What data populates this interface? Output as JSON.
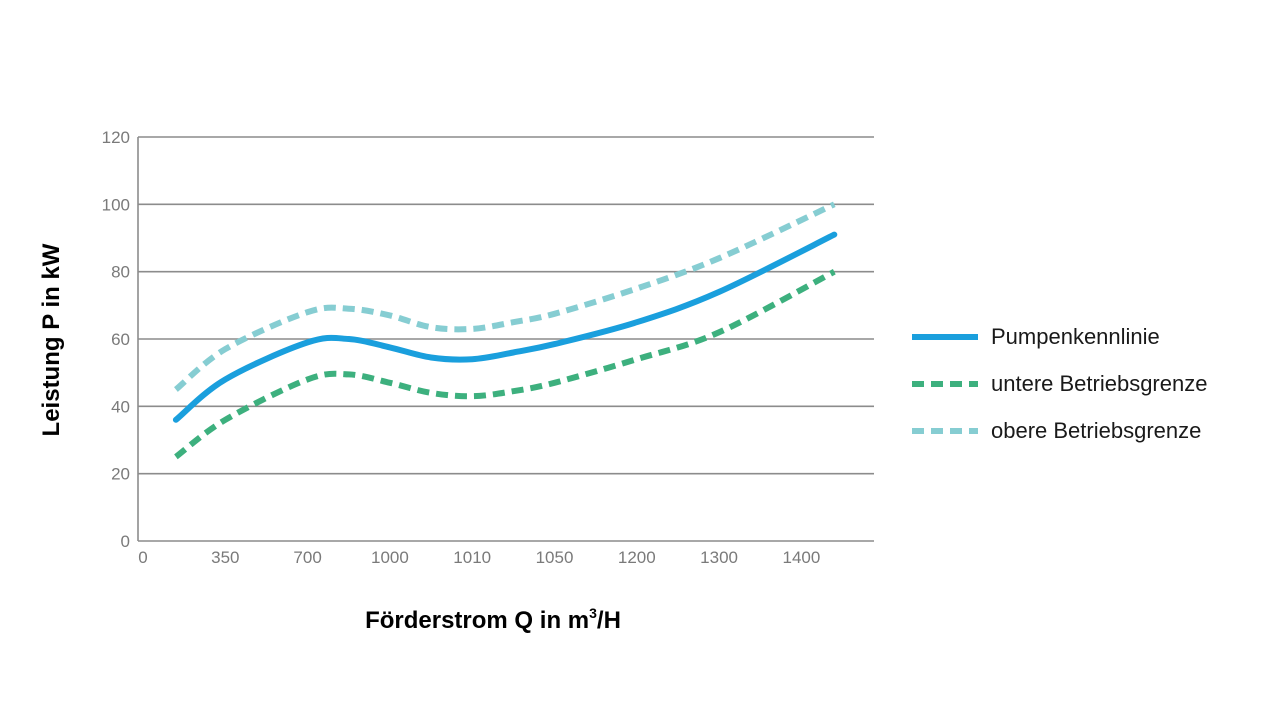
{
  "chart_data": {
    "type": "line",
    "title": "",
    "xlabel": "Förderstrom Q in m³/H",
    "xlabel_parts": {
      "main": "Förderstrom Q in m",
      "sup": "3",
      "tail": "/H"
    },
    "ylabel": "Leistung P in kW",
    "ylim": [
      0,
      120
    ],
    "yticks": [
      "0",
      "20",
      "40",
      "60",
      "80",
      "100",
      "120"
    ],
    "categories": [
      "0",
      "350",
      "700",
      "1000",
      "1010",
      "1050",
      "1200",
      "1300",
      "1400"
    ],
    "grid": "horizontal",
    "legend_position": "right",
    "series": [
      {
        "name": "Pumpenkennlinie",
        "color": "#1a9fdd",
        "style": "solid",
        "x": [
          0.4,
          1,
          2,
          2.5,
          3,
          3.5,
          4,
          4.5,
          5,
          6,
          7,
          8.4
        ],
        "values": [
          36,
          48,
          59,
          60,
          57.5,
          54.5,
          54,
          56,
          58.5,
          65,
          74,
          91
        ]
      },
      {
        "name": "untere Betriebsgrenze",
        "color": "#3db07e",
        "style": "dashed",
        "x": [
          0.4,
          1,
          2,
          2.5,
          3,
          3.5,
          4,
          4.5,
          5,
          6,
          7,
          8.4
        ],
        "values": [
          25,
          36,
          48,
          49.5,
          47,
          44,
          43,
          44.5,
          47,
          54,
          62,
          80
        ]
      },
      {
        "name": "obere Betriebsgrenze",
        "color": "#86cdd2",
        "style": "dashed",
        "x": [
          0.4,
          1,
          2,
          2.5,
          3,
          3.5,
          4,
          4.5,
          5,
          6,
          7,
          8.4
        ],
        "values": [
          45,
          57,
          68,
          69,
          67,
          63.5,
          63,
          65,
          67.5,
          75,
          84,
          100
        ]
      }
    ]
  }
}
